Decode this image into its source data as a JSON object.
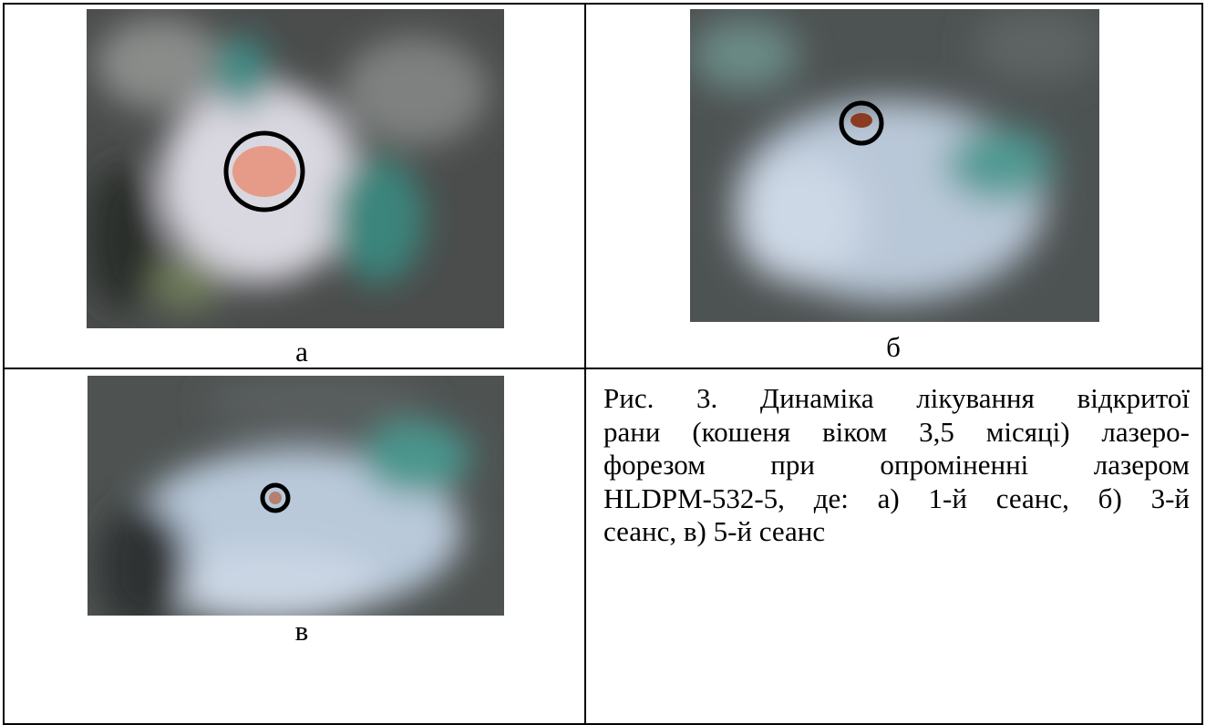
{
  "figure": {
    "panels": [
      {
        "label": "а"
      },
      {
        "label": "б"
      },
      {
        "label": "в"
      }
    ],
    "caption_lines": [
      "Рис. 3. Динаміка лікування відкритої",
      "рани (кошеня віком 3,5 місяці) лазеро-",
      "форезом при опроміненні лазером",
      "HLDPM-532-5, де: а) 1-й сеанс, б) 3-й",
      "сеанс, в) 5-й сеанс"
    ]
  }
}
